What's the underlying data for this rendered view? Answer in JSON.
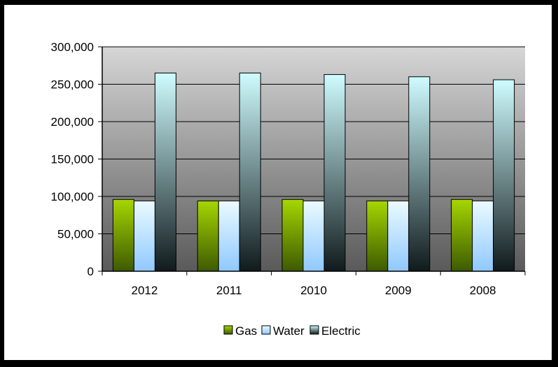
{
  "chart_data": {
    "type": "bar",
    "title": "",
    "xlabel": "",
    "ylabel": "",
    "categories": [
      "2012",
      "2011",
      "2010",
      "2009",
      "2008"
    ],
    "series": [
      {
        "name": "Gas",
        "values": [
          96000,
          94000,
          96000,
          94000,
          96000
        ]
      },
      {
        "name": "Water",
        "values": [
          94000,
          94000,
          94000,
          94000,
          94000
        ]
      },
      {
        "name": "Electric",
        "values": [
          265000,
          265000,
          263000,
          260000,
          256000
        ]
      }
    ],
    "ylim": [
      0,
      300000
    ],
    "yticks": [
      "0",
      "50,000",
      "100,000",
      "150,000",
      "200,000",
      "250,000",
      "300,000"
    ],
    "grid": true,
    "legend_position": "bottom",
    "colors": {
      "frame": "#000000",
      "plot_top": "#d6d6d6",
      "plot_bottom": "#5a5a5a",
      "gas_top": "#a6d600",
      "gas_bottom": "#3d5a00",
      "water_top": "#ebfbff",
      "water_bottom": "#8fc8ff",
      "electric_top": "#cffcff",
      "electric_bottom": "#101a1c"
    }
  }
}
